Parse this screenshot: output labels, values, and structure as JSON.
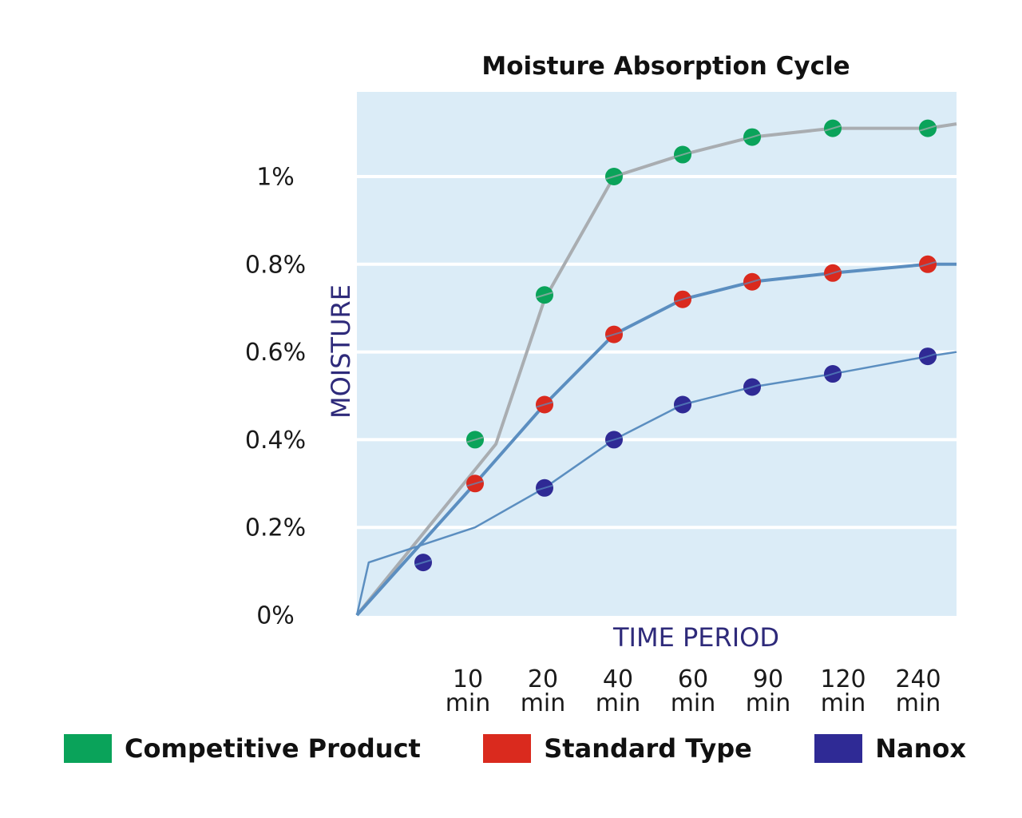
{
  "chart_data": {
    "type": "line",
    "title": "Moisture Absorption Cycle",
    "xlabel": "TIME PERIOD",
    "ylabel": "MOISTURE",
    "categories": [
      "10 min",
      "20 min",
      "40 min",
      "60 min",
      "90 min",
      "120 min",
      "240 min"
    ],
    "x_ticks": [
      {
        "top": "10",
        "bottom": "min"
      },
      {
        "top": "20",
        "bottom": "min"
      },
      {
        "top": "40",
        "bottom": "min"
      },
      {
        "top": "60",
        "bottom": "min"
      },
      {
        "top": "90",
        "bottom": "min"
      },
      {
        "top": "120",
        "bottom": "min"
      },
      {
        "top": "240",
        "bottom": "min"
      }
    ],
    "y_ticks": [
      {
        "value": 0,
        "label": "0%"
      },
      {
        "value": 0.2,
        "label": "0.2%"
      },
      {
        "value": 0.4,
        "label": "0.4%"
      },
      {
        "value": 0.6,
        "label": "0.6%"
      },
      {
        "value": 0.8,
        "label": "0.8%"
      },
      {
        "value": 1.0,
        "label": "1%"
      }
    ],
    "ylim": [
      0,
      1.2
    ],
    "grid": true,
    "legend_position": "bottom",
    "series": [
      {
        "name": "Competitive Product",
        "marker_color": "#0aa35a",
        "line_color": "#a9adb1",
        "points": [
          [
            1,
            0.4
          ],
          [
            2,
            0.73
          ],
          [
            3,
            1.0
          ],
          [
            4,
            1.05
          ],
          [
            5,
            1.09
          ],
          [
            6,
            1.11
          ],
          [
            7,
            1.11
          ]
        ],
        "line": [
          [
            0,
            0
          ],
          [
            1.3,
            0.39
          ],
          [
            2,
            0.72
          ],
          [
            3,
            1.0
          ],
          [
            4,
            1.05
          ],
          [
            5,
            1.09
          ],
          [
            6,
            1.11
          ],
          [
            7,
            1.11
          ],
          [
            7.4,
            1.12
          ]
        ]
      },
      {
        "name": "Standard Type",
        "marker_color": "#da2a1e",
        "line_color": "#5b8ec0",
        "points": [
          [
            1,
            0.3
          ],
          [
            2,
            0.48
          ],
          [
            3,
            0.64
          ],
          [
            4,
            0.72
          ],
          [
            5,
            0.76
          ],
          [
            6,
            0.78
          ],
          [
            7,
            0.8
          ]
        ],
        "line": [
          [
            0,
            0
          ],
          [
            1,
            0.3
          ],
          [
            2,
            0.48
          ],
          [
            3,
            0.64
          ],
          [
            4,
            0.72
          ],
          [
            5,
            0.76
          ],
          [
            6,
            0.78
          ],
          [
            7,
            0.8
          ],
          [
            7.4,
            0.8
          ]
        ]
      },
      {
        "name": "Nanox",
        "marker_color": "#2f2a95",
        "line_color": "#5b8ec0",
        "points": [
          [
            0.1,
            0.12
          ],
          [
            2,
            0.29
          ],
          [
            3,
            0.4
          ],
          [
            4,
            0.48
          ],
          [
            5,
            0.52
          ],
          [
            6,
            0.55
          ],
          [
            7,
            0.59
          ]
        ],
        "line": [
          [
            0,
            0
          ],
          [
            0.1,
            0.12
          ],
          [
            1,
            0.2
          ],
          [
            2,
            0.29
          ],
          [
            3,
            0.4
          ],
          [
            4,
            0.48
          ],
          [
            5,
            0.52
          ],
          [
            6,
            0.55
          ],
          [
            7,
            0.59
          ],
          [
            7.4,
            0.6
          ]
        ]
      }
    ]
  }
}
